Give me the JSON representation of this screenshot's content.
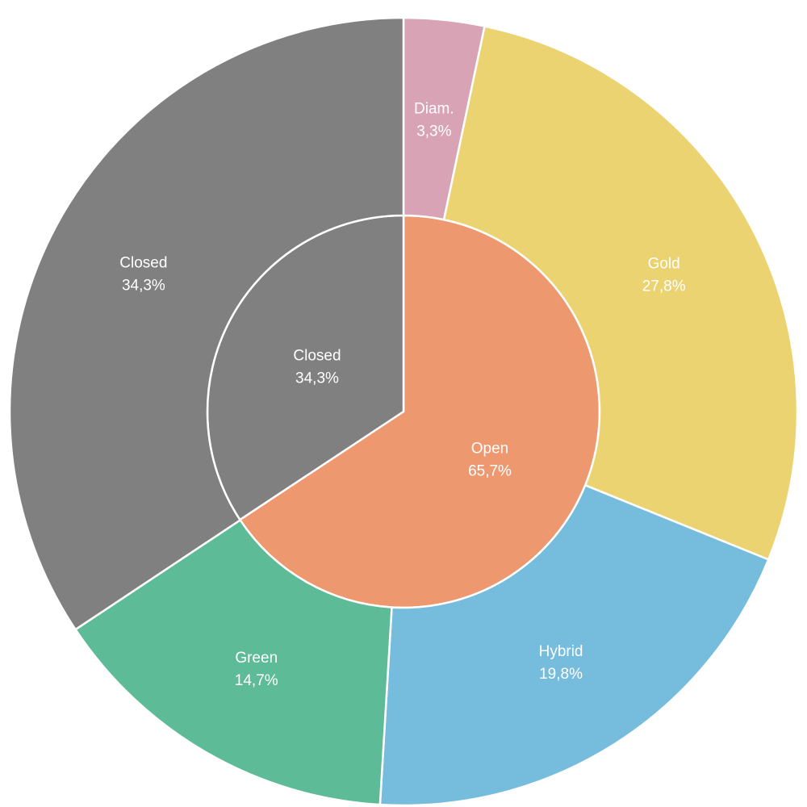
{
  "chart_data": {
    "type": "pie",
    "subtype": "sunburst",
    "legend": "none",
    "rings": [
      {
        "level": "inner",
        "slices": [
          {
            "label": "Open",
            "value": 65.7,
            "display": "65,7%",
            "color": "#ee9870"
          },
          {
            "label": "Closed",
            "value": 34.3,
            "display": "34,3%",
            "color": "#808080"
          }
        ]
      },
      {
        "level": "outer",
        "slices": [
          {
            "label": "Diam.",
            "value": 3.3,
            "display": "3,3%",
            "color": "#d8a3b5"
          },
          {
            "label": "Gold",
            "value": 27.8,
            "display": "27,8%",
            "color": "#ecd372"
          },
          {
            "label": "Hybrid",
            "value": 19.8,
            "display": "19,8%",
            "color": "#76bcdc"
          },
          {
            "label": "Green",
            "value": 14.7,
            "display": "14,7%",
            "color": "#5ebb98"
          },
          {
            "label": "Closed",
            "value": 34.3,
            "display": "34,3%",
            "color": "#808080"
          }
        ]
      }
    ]
  }
}
